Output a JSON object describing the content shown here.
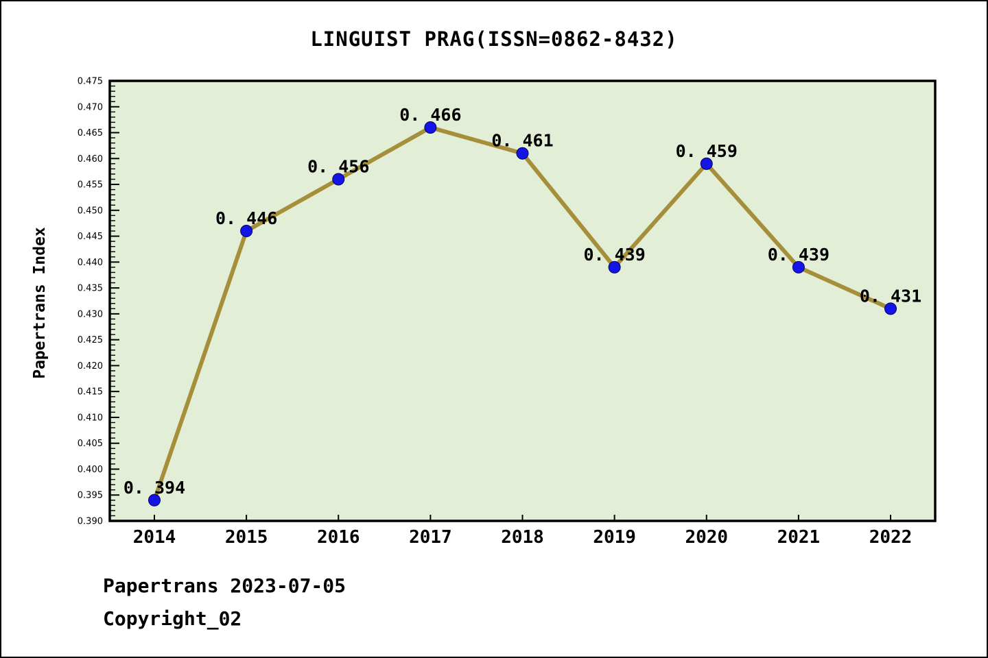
{
  "chart_data": {
    "type": "line",
    "title": "LINGUIST PRAG(ISSN=0862-8432)",
    "ylabel": "Papertrans Index",
    "xlabel": "",
    "categories": [
      "2014",
      "2015",
      "2016",
      "2017",
      "2018",
      "2019",
      "2020",
      "2021",
      "2022"
    ],
    "series": [
      {
        "name": "Papertrans Index",
        "values": [
          0.394,
          0.446,
          0.456,
          0.466,
          0.461,
          0.439,
          0.459,
          0.439,
          0.431
        ],
        "point_labels": [
          "0. 394",
          "0. 446",
          "0. 456",
          "0. 466",
          "0. 461",
          "0. 439",
          "0. 459",
          "0. 439",
          "0. 431"
        ]
      }
    ],
    "ylim": [
      0.39,
      0.475
    ],
    "ytick_major_step": 0.005,
    "ytick_minor_step": 0.001,
    "ytick_decimals": 3,
    "grid": false,
    "legend_position": "none",
    "colors": {
      "line": "#a68f3a",
      "marker_fill": "#1414e6",
      "marker_edge": "#000066",
      "plot_background": "#e3eed7",
      "page_background": "#ffffff",
      "axis_frame": "#000000",
      "text": "#000000"
    }
  },
  "footer": {
    "line1": "Papertrans 2023-07-05",
    "line2": "Copyright_02"
  }
}
